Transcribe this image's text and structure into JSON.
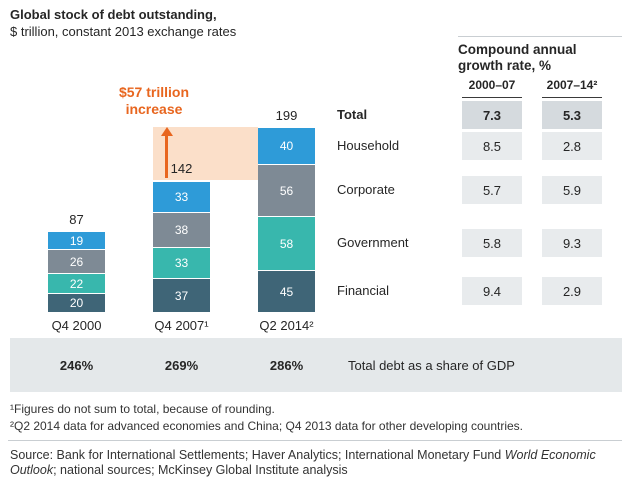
{
  "title": "Global stock of debt outstanding,",
  "subtitle": "$ trillion, constant 2013 exchange rates",
  "annotation": {
    "line1": "$57 trillion",
    "line2": "increase"
  },
  "chart_data": {
    "type": "bar",
    "stacked": true,
    "title": "Global stock of debt outstanding, $ trillion, constant 2013 exchange rates",
    "categories": [
      "Q4 2000",
      "Q4 2007¹",
      "Q2 2014²"
    ],
    "totals": [
      87,
      142,
      199
    ],
    "stack_order": "bottom-to-top",
    "series": [
      {
        "name": "Financial",
        "color": "#3f6577",
        "values": [
          20,
          37,
          45
        ]
      },
      {
        "name": "Government",
        "color": "#38b7ad",
        "values": [
          22,
          33,
          58
        ]
      },
      {
        "name": "Corporate",
        "color": "#7e8a95",
        "values": [
          26,
          38,
          56
        ]
      },
      {
        "name": "Household",
        "color": "#2e9bd8",
        "values": [
          19,
          33,
          40
        ]
      }
    ],
    "annotation": "$57 trillion increase",
    "gdp_share": {
      "values": [
        "246%",
        "269%",
        "286%"
      ],
      "label": "Total debt as a share of GDP"
    }
  },
  "table": {
    "header": "Compound annual growth rate, %",
    "columns": [
      "2000–07",
      "2007–14²"
    ],
    "rows": [
      {
        "label": "Total",
        "v1": "7.3",
        "v2": "5.3",
        "bold": true
      },
      {
        "label": "Household",
        "v1": "8.5",
        "v2": "2.8",
        "bold": false
      },
      {
        "label": "Corporate",
        "v1": "5.7",
        "v2": "5.9",
        "bold": false
      },
      {
        "label": "Government",
        "v1": "5.8",
        "v2": "9.3",
        "bold": false
      },
      {
        "label": "Financial",
        "v1": "9.4",
        "v2": "2.9",
        "bold": false
      }
    ]
  },
  "footnotes": [
    "¹Figures do not sum to total, because of rounding.",
    "²Q2 2014 data for advanced economies and China; Q4 2013 data for other developing countries."
  ],
  "source": {
    "prefix": "Source: Bank for International Settlements; Haver Analytics; International Monetary Fund ",
    "italic": "World Economic Outlook",
    "suffix": "; national sources; McKinsey Global Institute analysis"
  },
  "colors": {
    "household": "#2e9bd8",
    "corporate": "#7e8a95",
    "government": "#38b7ad",
    "financial": "#3f6577",
    "accent_orange": "#e8661f",
    "highlight_peach": "#fbdfc9",
    "band_gray": "#e4e8ea",
    "cell_gray": "#e8ebed",
    "cell_total_gray": "#d5dade"
  }
}
